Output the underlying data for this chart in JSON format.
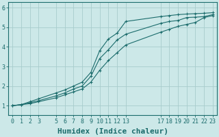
{
  "title": "",
  "xlabel": "Humidex (Indice chaleur)",
  "ylabel": "",
  "bg_color": "#cce8e8",
  "grid_color": "#a8cccc",
  "line_color": "#1a6b6b",
  "marker": "+",
  "xlim": [
    -0.5,
    23.5
  ],
  "ylim": [
    0.5,
    6.3
  ],
  "yticks": [
    1,
    2,
    3,
    4,
    5,
    6
  ],
  "xticks": [
    0,
    1,
    2,
    3,
    5,
    6,
    7,
    8,
    9,
    10,
    11,
    12,
    13,
    17,
    18,
    19,
    20,
    21,
    22,
    23
  ],
  "line1_x": [
    0,
    1,
    2,
    3,
    5,
    6,
    7,
    8,
    9,
    10,
    11,
    12,
    13,
    17,
    18,
    19,
    20,
    21,
    22,
    23
  ],
  "line1_y": [
    1.0,
    1.05,
    1.15,
    1.25,
    1.5,
    1.65,
    1.85,
    2.0,
    2.5,
    3.4,
    3.85,
    4.35,
    4.65,
    5.2,
    5.3,
    5.35,
    5.5,
    5.52,
    5.55,
    5.65
  ],
  "line2_x": [
    0,
    1,
    2,
    3,
    5,
    6,
    7,
    8,
    9,
    10,
    11,
    12,
    13,
    17,
    18,
    19,
    20,
    21,
    22,
    23
  ],
  "line2_y": [
    1.0,
    1.05,
    1.2,
    1.35,
    1.65,
    1.8,
    2.0,
    2.2,
    2.7,
    3.8,
    4.4,
    4.7,
    5.3,
    5.55,
    5.6,
    5.65,
    5.68,
    5.7,
    5.72,
    5.75
  ],
  "line3_x": [
    0,
    1,
    2,
    3,
    5,
    6,
    7,
    8,
    9,
    10,
    11,
    12,
    13,
    17,
    18,
    19,
    20,
    21,
    22,
    23
  ],
  "line3_y": [
    1.0,
    1.05,
    1.1,
    1.2,
    1.4,
    1.55,
    1.7,
    1.85,
    2.2,
    2.8,
    3.3,
    3.7,
    4.1,
    4.75,
    4.9,
    5.05,
    5.15,
    5.25,
    5.5,
    5.6
  ],
  "xlabel_fontsize": 8,
  "tick_fontsize": 6,
  "figsize": [
    3.2,
    2.0
  ],
  "dpi": 100
}
